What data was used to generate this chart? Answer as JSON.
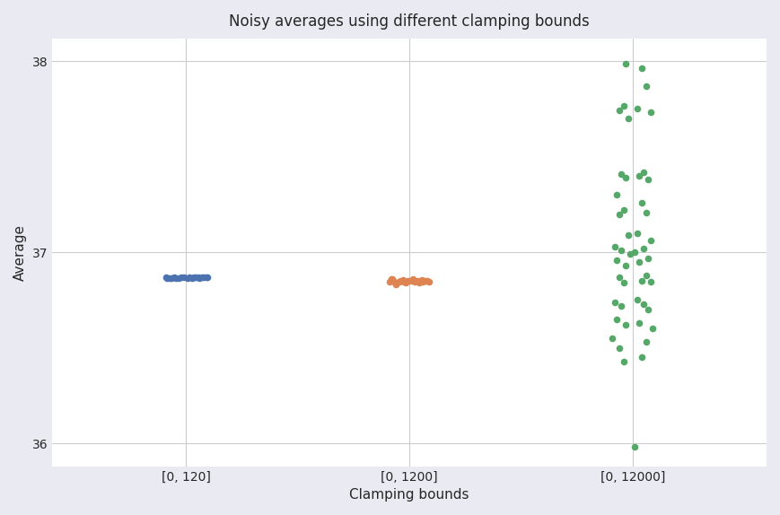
{
  "title": "Noisy averages using different clamping bounds",
  "xlabel": "Clamping bounds",
  "ylabel": "Average",
  "ylim": [
    35.88,
    38.12
  ],
  "xlim": [
    -0.6,
    2.6
  ],
  "xtick_positions": [
    0,
    1,
    2
  ],
  "xtick_labels": [
    "[0, 120]",
    "[0, 1200]",
    "[0, 12000]"
  ],
  "ytick_positions": [
    36,
    37,
    38
  ],
  "plot_bg_color": "#ffffff",
  "fig_bg_color": "#eaeaf2",
  "grid_color": "#ffffff",
  "colors": [
    "#4c72b0",
    "#dd8452",
    "#55a868"
  ],
  "group1_y": [
    36.865,
    36.868,
    36.87,
    36.866,
    36.869,
    36.867,
    36.871,
    36.868,
    36.866,
    36.87,
    36.867,
    36.869,
    36.868,
    36.867,
    36.87,
    36.866,
    36.869,
    36.867,
    36.868,
    36.87
  ],
  "group1_jitter": [
    -0.035,
    -0.02,
    -0.01,
    0.005,
    0.015,
    0.025,
    0.035,
    0.045,
    -0.045,
    0.055,
    0.06,
    -0.055,
    0.07,
    -0.065,
    0.08,
    -0.075,
    0.09,
    -0.085,
    0.095,
    -0.09
  ],
  "group2_y": [
    36.83,
    36.845,
    36.855,
    36.84,
    36.85,
    36.86,
    36.853,
    36.842,
    36.848,
    36.858,
    36.852,
    36.847,
    36.844,
    36.843,
    36.856,
    36.851,
    36.849,
    36.846,
    36.845,
    36.853,
    36.852,
    36.851,
    36.844,
    36.85,
    36.858
  ],
  "group2_jitter": [
    -0.06,
    -0.045,
    -0.03,
    -0.015,
    0.0,
    0.015,
    0.03,
    0.045,
    0.06,
    -0.075,
    0.075,
    -0.09,
    0.09,
    -0.055,
    0.055,
    -0.04,
    0.04,
    -0.025,
    0.025,
    -0.01,
    0.01,
    0.07,
    -0.07,
    0.08,
    -0.08
  ],
  "group3_y": [
    37.99,
    37.965,
    37.87,
    37.765,
    37.755,
    37.745,
    37.735,
    37.7,
    37.42,
    37.41,
    37.4,
    37.39,
    37.38,
    37.3,
    37.26,
    37.22,
    37.21,
    37.2,
    37.1,
    37.09,
    37.06,
    37.03,
    37.02,
    37.01,
    37.0,
    36.99,
    36.97,
    36.96,
    36.95,
    36.93,
    36.88,
    36.87,
    36.85,
    36.845,
    36.84,
    36.75,
    36.74,
    36.73,
    36.72,
    36.7,
    36.65,
    36.63,
    36.62,
    36.6,
    36.55,
    36.53,
    36.5,
    36.45,
    36.43,
    35.98
  ],
  "group3_jitter": [
    -0.03,
    0.04,
    0.06,
    -0.04,
    0.02,
    -0.06,
    0.08,
    -0.02,
    0.05,
    -0.05,
    0.03,
    -0.03,
    0.07,
    -0.07,
    0.04,
    -0.04,
    0.06,
    -0.06,
    0.02,
    -0.02,
    0.08,
    -0.08,
    0.05,
    -0.05,
    0.01,
    -0.01,
    0.07,
    -0.07,
    0.03,
    -0.03,
    0.06,
    -0.06,
    0.04,
    0.08,
    -0.04,
    0.02,
    -0.08,
    0.05,
    -0.05,
    0.07,
    -0.07,
    0.03,
    -0.03,
    0.09,
    -0.09,
    0.06,
    -0.06,
    0.04,
    -0.04,
    0.01
  ],
  "title_fontsize": 12,
  "label_fontsize": 11,
  "tick_fontsize": 10,
  "marker_size": 30
}
